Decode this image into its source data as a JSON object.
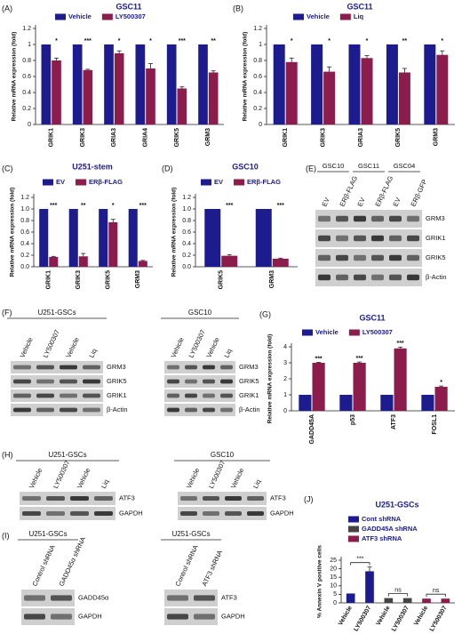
{
  "chart_data": [
    {
      "panel": "(A)",
      "type": "bar",
      "title": "GSC11",
      "ylabel": "Relative mRNA expression (fold)",
      "categories": [
        "GRIK1",
        "GRIK3",
        "GRIA3",
        "GRIA4",
        "GRIK5",
        "GRM3"
      ],
      "series": [
        {
          "name": "Vehicle",
          "color": "#1c1c8f",
          "values": [
            1,
            1,
            1,
            1,
            1,
            1
          ]
        },
        {
          "name": "LY500307",
          "color": "#8c1c4c",
          "values": [
            0.8,
            0.68,
            0.89,
            0.7,
            0.45,
            0.65
          ],
          "errors": [
            0.03,
            0.01,
            0.03,
            0.06,
            0.02,
            0.02
          ]
        }
      ],
      "annotations": [
        "*",
        "***",
        "*",
        "*",
        "***",
        "**"
      ],
      "ylim": [
        0,
        1.2
      ],
      "yticks": [
        0,
        0.2,
        0.4,
        0.6,
        0.8,
        1,
        1.2
      ]
    },
    {
      "panel": "(B)",
      "type": "bar",
      "title": "GSC11",
      "ylabel": "Relative mRNA expression (fold)",
      "categories": [
        "GRIK1",
        "GRIK3",
        "GRIA3",
        "GRIK5",
        "GRM3"
      ],
      "series": [
        {
          "name": "Vehicle",
          "color": "#1c1c8f",
          "values": [
            1,
            1,
            1,
            1,
            1
          ]
        },
        {
          "name": "Liq",
          "color": "#8c1c4c",
          "values": [
            0.78,
            0.66,
            0.83,
            0.65,
            0.87
          ],
          "errors": [
            0.05,
            0.06,
            0.03,
            0.05,
            0.05
          ]
        }
      ],
      "annotations": [
        "*",
        "*",
        "*",
        "**",
        "*"
      ],
      "ylim": [
        0,
        1.2
      ],
      "yticks": [
        0,
        0.2,
        0.4,
        0.6,
        0.8,
        1,
        1.2
      ]
    },
    {
      "panel": "(C)",
      "type": "bar",
      "title": "U251-stem",
      "ylabel": "Relative mRNA expression (fold)",
      "categories": [
        "GRIK1",
        "GRIK3",
        "GRIK5",
        "GRM3"
      ],
      "series": [
        {
          "name": "EV",
          "color": "#1c1c8f",
          "values": [
            1,
            1,
            1,
            1
          ]
        },
        {
          "name": "ERβ-FLAG",
          "color": "#8c1c4c",
          "values": [
            0.17,
            0.18,
            0.77,
            0.1
          ],
          "errors": [
            0.01,
            0.05,
            0.05,
            0.01
          ]
        }
      ],
      "annotations": [
        "***",
        "**",
        "*",
        "***"
      ],
      "ylim": [
        0,
        1.2
      ],
      "yticks": [
        {
          "value": 0,
          "label": "0.0"
        },
        0.2,
        0.4,
        0.6,
        0.8,
        {
          "value": 1,
          "label": "1.0"
        },
        1.2
      ]
    },
    {
      "panel": "(D)",
      "type": "bar",
      "title": "GSC10",
      "ylabel": "Relative mRNA expression (fold)",
      "categories": [
        "GRIK5",
        "GRM3"
      ],
      "series": [
        {
          "name": "EV",
          "color": "#1c1c8f",
          "values": [
            1,
            1
          ]
        },
        {
          "name": "ERβ-FLAG",
          "color": "#8c1c4c",
          "values": [
            0.19,
            0.14
          ],
          "errors": [
            0.02,
            0.01
          ]
        }
      ],
      "annotations": [
        "***",
        "***"
      ],
      "ylim": [
        0,
        1.2
      ],
      "yticks": [
        {
          "value": 0,
          "label": "0.0"
        },
        0.2,
        0.4,
        0.6,
        0.8,
        {
          "value": 1,
          "label": "1.0"
        },
        1.2
      ]
    },
    {
      "panel": "(G)",
      "type": "bar",
      "title": "GSC11",
      "ylabel": "Relative mRNA expression (fold)",
      "categories": [
        "GADD45A",
        "p53",
        "ATF3",
        "FOSL1"
      ],
      "series": [
        {
          "name": "Vehicle",
          "color": "#1c1c8f",
          "values": [
            1,
            1,
            1,
            1
          ]
        },
        {
          "name": "LY500307",
          "color": "#8c1c4c",
          "values": [
            3.0,
            3.0,
            3.9,
            1.5
          ],
          "errors": [
            0.03,
            0.05,
            0.08,
            0.05
          ]
        }
      ],
      "annotations": [
        "***",
        "***",
        "***",
        "*"
      ],
      "ylim": [
        0,
        4
      ],
      "yticks": [
        0,
        1,
        2,
        3,
        4
      ]
    },
    {
      "panel": "(J)",
      "type": "bar",
      "title": "U251-GSCs",
      "ylabel": "% Annexin V positive cells",
      "categories": [
        "Vehicle",
        "LY500307",
        "Vehicle",
        "LY500307",
        "Vehicle",
        "LY500307"
      ],
      "series": [
        {
          "name": "Cont shRNA",
          "color": "#1c1c8f",
          "values": [
            5.5,
            18.5,
            null,
            null,
            null,
            null
          ],
          "errors": [
            null,
            2.5,
            null,
            null,
            null,
            null
          ]
        },
        {
          "name": "GADD45A shRNA",
          "color": "#444444",
          "values": [
            null,
            null,
            2.8,
            2.8,
            null,
            null
          ]
        },
        {
          "name": "ATF3 shRNA",
          "color": "#8c1c4c",
          "values": [
            null,
            null,
            null,
            null,
            2.5,
            2.5
          ]
        }
      ],
      "annotations": [
        "***",
        null,
        "ns",
        null,
        "ns",
        null
      ],
      "ylim": [
        0,
        25
      ],
      "yticks": [
        0,
        5,
        10,
        15,
        20,
        25
      ]
    }
  ],
  "blots": {
    "E": {
      "panel": "(E)",
      "columns": [
        "GSC10",
        "GSC11",
        "GSC04"
      ],
      "lanes": [
        "EV",
        "ERβ-FLAG",
        "EV",
        "ERβ-FLAG",
        "EV",
        "ERβ-GFP"
      ],
      "rows": [
        "GRM3",
        "GRIK1",
        "GRIK5",
        "β-Actin"
      ]
    },
    "F": {
      "panel": "(F)",
      "groups": [
        {
          "title": "U251-GSCs",
          "lanes": [
            "Vehicle",
            "LY500307",
            "Vehicle",
            "Liq"
          ],
          "rows": [
            "GRM3",
            "GRIK5",
            "GRIK1",
            "β-Actin"
          ]
        },
        {
          "title": "GSC10",
          "lanes": [
            "Vehicle",
            "LY500307",
            "Vehicle",
            "Liq"
          ],
          "rows": [
            "GRM3",
            "GRIK5",
            "GRIK1",
            "β-Actin"
          ]
        }
      ]
    },
    "H": {
      "panel": "(H)",
      "groups": [
        {
          "title": "U251-GSCs",
          "lanes": [
            "Vehicle",
            "LY500307",
            "Vehicle",
            "Liq"
          ],
          "rows": [
            "ATF3",
            "GAPDH"
          ]
        },
        {
          "title": "GSC10",
          "lanes": [
            "Vehicle",
            "LY500307",
            "Vehicle",
            "Liq"
          ],
          "rows": [
            "ATF3",
            "GAPDH"
          ]
        }
      ]
    },
    "I": {
      "panel": "(I)",
      "groups": [
        {
          "title": "U251-GSCs",
          "lanes": [
            "Control shRNA",
            "GADD45α shRNA"
          ],
          "rows": [
            "GADD45α",
            "GAPDH"
          ]
        },
        {
          "title": "U251-GSCs",
          "lanes": [
            "Control shRNA",
            "ATF3 shRNA"
          ],
          "rows": [
            "ATF3",
            "GAPDH"
          ]
        }
      ]
    }
  }
}
